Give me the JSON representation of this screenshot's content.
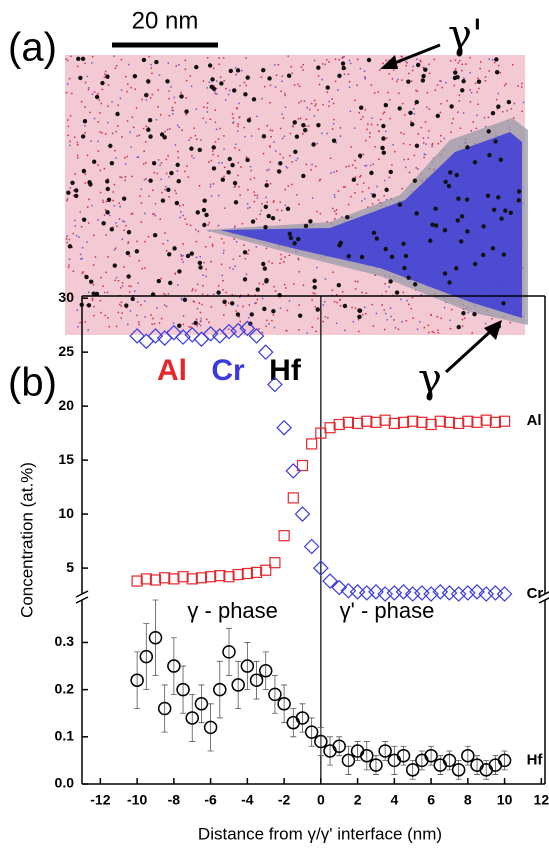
{
  "panel_a": {
    "label": "(a)",
    "scale_bar": "20 nm",
    "gamma_prime": "γ'",
    "gamma": "γ",
    "legend": [
      "Al",
      "Cr",
      "Hf"
    ]
  },
  "chart_data": {
    "type": "scatter",
    "panel_label": "(b)",
    "x_label": "Distance from γ/γ' interface (nm)",
    "y_label": "Concentration (at.%)",
    "annotations": [
      "γ - phase",
      "γ' - phase"
    ],
    "x": [
      -10,
      -9.5,
      -9,
      -8.5,
      -8,
      -7.5,
      -7,
      -6.5,
      -6,
      -5.5,
      -5,
      -4.5,
      -4,
      -3.5,
      -3,
      -2.5,
      -2,
      -1.5,
      -1,
      -0.5,
      0,
      0.5,
      1,
      1.5,
      2,
      2.5,
      3,
      3.5,
      4,
      4.5,
      5,
      5.5,
      6,
      6.5,
      7,
      7.5,
      8,
      8.5,
      9,
      9.5,
      10
    ],
    "xlim": [
      -13,
      12.2
    ],
    "xticks": [
      -12,
      -10,
      -8,
      -6,
      -4,
      -2,
      0,
      2,
      4,
      6,
      8,
      10,
      12
    ],
    "ylim": [
      2.6,
      30.2
    ],
    "yticks": [
      5,
      10,
      15,
      20,
      25,
      30
    ],
    "y2lim": [
      0,
      0.39
    ],
    "y2ticks": [
      {
        "value": 0,
        "label": "0.0"
      },
      0.1,
      0.2,
      0.3
    ],
    "series": [
      {
        "name": "Al",
        "color": "#e5262b",
        "marker": "square",
        "values": [
          3.8,
          4.0,
          3.9,
          4.1,
          4.0,
          4.2,
          4.0,
          4.1,
          4.2,
          4.3,
          4.2,
          4.4,
          4.5,
          4.6,
          4.8,
          5.5,
          8,
          11.5,
          14.5,
          16.5,
          17.5,
          18,
          18.3,
          18.5,
          18.4,
          18.6,
          18.5,
          18.7,
          18.4,
          18.5,
          18.6,
          18.5,
          18.3,
          18.6,
          18.5,
          18.4,
          18.6,
          18.5,
          18.7,
          18.5,
          18.6
        ]
      },
      {
        "name": "Cr",
        "color": "#3a3ae0",
        "marker": "diamond",
        "values": [
          26.5,
          26,
          26.5,
          26.3,
          26.8,
          26.4,
          26.6,
          26.2,
          26.7,
          26.5,
          26.9,
          27,
          27.2,
          26.5,
          25,
          22,
          18,
          14,
          10,
          7,
          5,
          3.8,
          3.2,
          2.9,
          2.8,
          2.7,
          2.8,
          2.6,
          2.7,
          2.8,
          2.6,
          2.7,
          2.6,
          2.8,
          2.7,
          2.6,
          2.7,
          2.8,
          2.6,
          2.7,
          2.6
        ]
      },
      {
        "name": "Hf",
        "color": "#000000",
        "marker": "circle",
        "axis": "y2",
        "values": [
          0.22,
          0.27,
          0.31,
          0.16,
          0.25,
          0.2,
          0.14,
          0.17,
          0.12,
          0.2,
          0.28,
          0.21,
          0.25,
          0.22,
          0.24,
          0.19,
          0.17,
          0.13,
          0.14,
          0.11,
          0.09,
          0.07,
          0.08,
          0.05,
          0.07,
          0.06,
          0.04,
          0.07,
          0.05,
          0.06,
          0.03,
          0.05,
          0.06,
          0.04,
          0.05,
          0.03,
          0.06,
          0.04,
          0.03,
          0.04,
          0.05
        ],
        "errors": [
          0.06,
          0.07,
          0.08,
          0.05,
          0.06,
          0.05,
          0.05,
          0.04,
          0.05,
          0.06,
          0.05,
          0.05,
          0.05,
          0.04,
          0.04,
          0.04,
          0.04,
          0.03,
          0.03,
          0.03,
          0.03,
          0.03,
          0.02,
          0.03,
          0.02,
          0.03,
          0.02,
          0.02,
          0.03,
          0.02,
          0.02,
          0.02,
          0.02,
          0.02,
          0.02,
          0.02,
          0.02,
          0.02,
          0.02,
          0.02,
          0.02
        ]
      }
    ]
  }
}
